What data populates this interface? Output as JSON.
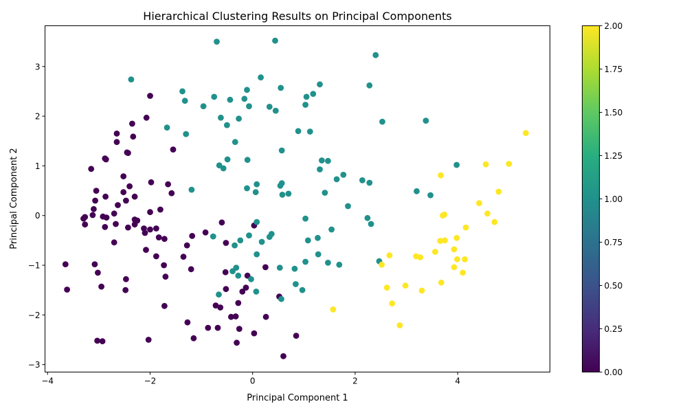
{
  "chart_data": {
    "type": "scatter",
    "title": "Hierarchical Clustering Results on Principal Components",
    "xlabel": "Principal Component 1",
    "ylabel": "Principal Component 2",
    "xlim": [
      -4.05,
      5.8
    ],
    "ylim": [
      -3.15,
      3.82
    ],
    "xticks": [
      -4,
      -2,
      0,
      2,
      4
    ],
    "xtick_labels": [
      "−4",
      "−2",
      "0",
      "2",
      "4"
    ],
    "yticks": [
      -3,
      -2,
      -1,
      0,
      1,
      2,
      3
    ],
    "ytick_labels": [
      "−3",
      "−2",
      "−1",
      "0",
      "1",
      "2",
      "3"
    ],
    "grid": false,
    "colorbar": {
      "colormap": "viridis",
      "range": [
        0,
        2
      ],
      "ticks": [
        0,
        0.25,
        0.5,
        0.75,
        1.0,
        1.25,
        1.5,
        1.75,
        2.0
      ],
      "tick_labels": [
        "0.00",
        "0.25",
        "0.50",
        "0.75",
        "1.00",
        "1.25",
        "1.50",
        "1.75",
        "2.00"
      ]
    },
    "cluster_colors": [
      "#440154",
      "#21918c",
      "#fde725"
    ],
    "series": [
      {
        "cluster": 0,
        "points": [
          [
            -2.35,
            1.85
          ],
          [
            -2.0,
            2.41
          ],
          [
            -2.07,
            1.97
          ],
          [
            -2.33,
            1.59
          ],
          [
            -2.65,
            1.65
          ],
          [
            -2.65,
            1.48
          ],
          [
            -2.43,
            1.26
          ],
          [
            -2.45,
            1.27
          ],
          [
            -2.86,
            1.13
          ],
          [
            -3.15,
            0.94
          ],
          [
            -2.88,
            1.15
          ],
          [
            -1.55,
            1.33
          ],
          [
            -2.52,
            0.79
          ],
          [
            -1.98,
            0.67
          ],
          [
            -3.05,
            0.5
          ],
          [
            -2.4,
            0.59
          ],
          [
            -1.65,
            0.63
          ],
          [
            -2.52,
            0.47
          ],
          [
            -3.07,
            0.3
          ],
          [
            -2.47,
            0.3
          ],
          [
            -2.3,
            0.38
          ],
          [
            -2.87,
            0.38
          ],
          [
            -1.58,
            0.45
          ],
          [
            -2.63,
            0.21
          ],
          [
            -3.1,
            0.13
          ],
          [
            -1.8,
            0.12
          ],
          [
            -2.0,
            0.07
          ],
          [
            -2.7,
            0.04
          ],
          [
            -3.12,
            0.01
          ],
          [
            -2.92,
            -0.02
          ],
          [
            -3.27,
            -0.03
          ],
          [
            -3.3,
            -0.06
          ],
          [
            -2.85,
            -0.04
          ],
          [
            -2.3,
            -0.08
          ],
          [
            -2.25,
            -0.1
          ],
          [
            -0.6,
            -0.14
          ],
          [
            -2.3,
            -0.18
          ],
          [
            -2.67,
            -0.17
          ],
          [
            -3.27,
            -0.18
          ],
          [
            -2.88,
            -0.23
          ],
          [
            -2.43,
            -0.24
          ],
          [
            -2.12,
            -0.26
          ],
          [
            -2.0,
            -0.28
          ],
          [
            -1.88,
            -0.26
          ],
          [
            -2.1,
            -0.35
          ],
          [
            0.03,
            -0.2
          ],
          [
            -0.92,
            -0.34
          ],
          [
            -1.18,
            -0.41
          ],
          [
            -1.83,
            -0.44
          ],
          [
            -1.72,
            -0.47
          ],
          [
            -0.52,
            -0.55
          ],
          [
            -1.28,
            -0.6
          ],
          [
            -2.7,
            -0.54
          ],
          [
            -2.08,
            -0.69
          ],
          [
            -1.88,
            -0.82
          ],
          [
            -1.35,
            -0.83
          ],
          [
            -3.65,
            -0.98
          ],
          [
            -3.08,
            -0.98
          ],
          [
            -1.73,
            -1.0
          ],
          [
            -1.2,
            -1.08
          ],
          [
            -3.02,
            -1.15
          ],
          [
            -0.53,
            -1.14
          ],
          [
            0.25,
            -1.04
          ],
          [
            -1.7,
            -1.23
          ],
          [
            -2.47,
            -1.28
          ],
          [
            -2.95,
            -1.43
          ],
          [
            -3.62,
            -1.49
          ],
          [
            -2.48,
            -1.5
          ],
          [
            -0.52,
            -1.48
          ],
          [
            -0.2,
            -1.53
          ],
          [
            -0.1,
            -1.21
          ],
          [
            -0.13,
            -1.45
          ],
          [
            0.52,
            -1.63
          ],
          [
            -1.72,
            -1.82
          ],
          [
            -0.72,
            -1.81
          ],
          [
            -0.63,
            -1.85
          ],
          [
            -0.28,
            -1.76
          ],
          [
            -0.42,
            -2.04
          ],
          [
            -0.33,
            -2.03
          ],
          [
            0.26,
            -2.04
          ],
          [
            -1.27,
            -2.15
          ],
          [
            -0.87,
            -2.26
          ],
          [
            -0.68,
            -2.26
          ],
          [
            -0.26,
            -2.28
          ],
          [
            0.03,
            -2.37
          ],
          [
            0.85,
            -2.42
          ],
          [
            -1.15,
            -2.47
          ],
          [
            -2.03,
            -2.5
          ],
          [
            -3.03,
            -2.52
          ],
          [
            -2.93,
            -2.53
          ],
          [
            -0.31,
            -2.56
          ],
          [
            0.6,
            -2.83
          ]
        ]
      },
      {
        "cluster": 1,
        "points": [
          [
            -0.7,
            3.5
          ],
          [
            0.44,
            3.52
          ],
          [
            2.4,
            3.23
          ],
          [
            -2.37,
            2.74
          ],
          [
            0.16,
            2.78
          ],
          [
            1.31,
            2.64
          ],
          [
            2.28,
            2.62
          ],
          [
            -1.37,
            2.5
          ],
          [
            -0.11,
            2.53
          ],
          [
            0.55,
            2.57
          ],
          [
            1.18,
            2.45
          ],
          [
            -0.75,
            2.39
          ],
          [
            -1.32,
            2.31
          ],
          [
            -0.44,
            2.33
          ],
          [
            -0.16,
            2.35
          ],
          [
            1.05,
            2.39
          ],
          [
            -0.96,
            2.2
          ],
          [
            -0.07,
            2.2
          ],
          [
            0.33,
            2.19
          ],
          [
            0.45,
            2.11
          ],
          [
            1.03,
            2.23
          ],
          [
            -0.62,
            1.97
          ],
          [
            -0.27,
            1.95
          ],
          [
            2.53,
            1.89
          ],
          [
            3.38,
            1.91
          ],
          [
            -0.5,
            1.82
          ],
          [
            0.89,
            1.7
          ],
          [
            1.12,
            1.69
          ],
          [
            -1.67,
            1.77
          ],
          [
            -1.3,
            1.64
          ],
          [
            -0.34,
            1.48
          ],
          [
            0.57,
            1.31
          ],
          [
            -0.49,
            1.13
          ],
          [
            -0.1,
            1.12
          ],
          [
            1.35,
            1.11
          ],
          [
            1.47,
            1.1
          ],
          [
            3.98,
            1.02
          ],
          [
            -0.65,
            1.01
          ],
          [
            -0.57,
            0.95
          ],
          [
            1.31,
            0.93
          ],
          [
            1.77,
            0.82
          ],
          [
            1.64,
            0.73
          ],
          [
            2.14,
            0.71
          ],
          [
            2.28,
            0.66
          ],
          [
            0.08,
            0.63
          ],
          [
            0.54,
            0.6
          ],
          [
            0.57,
            0.65
          ],
          [
            -1.19,
            0.52
          ],
          [
            -0.11,
            0.55
          ],
          [
            0.06,
            0.47
          ],
          [
            0.58,
            0.42
          ],
          [
            0.7,
            0.44
          ],
          [
            1.41,
            0.46
          ],
          [
            3.2,
            0.49
          ],
          [
            3.47,
            0.41
          ],
          [
            1.86,
            0.19
          ],
          [
            1.03,
            -0.06
          ],
          [
            0.08,
            -0.13
          ],
          [
            2.24,
            -0.05
          ],
          [
            2.31,
            -0.17
          ],
          [
            1.54,
            -0.28
          ],
          [
            0.37,
            -0.37
          ],
          [
            0.33,
            -0.43
          ],
          [
            -0.07,
            -0.4
          ],
          [
            1.08,
            -0.5
          ],
          [
            1.27,
            -0.45
          ],
          [
            -0.24,
            -0.5
          ],
          [
            -0.35,
            -0.6
          ],
          [
            0.18,
            -0.53
          ],
          [
            -0.77,
            -0.42
          ],
          [
            0.08,
            -0.78
          ],
          [
            1.28,
            -0.78
          ],
          [
            1.03,
            -0.93
          ],
          [
            1.47,
            -0.95
          ],
          [
            1.69,
            -0.99
          ],
          [
            2.47,
            -0.92
          ],
          [
            -0.32,
            -1.05
          ],
          [
            0.53,
            -1.05
          ],
          [
            0.82,
            -1.07
          ],
          [
            -0.39,
            -1.12
          ],
          [
            -0.28,
            -1.21
          ],
          [
            -0.03,
            -1.28
          ],
          [
            0.84,
            -1.38
          ],
          [
            0.97,
            -1.5
          ],
          [
            0.07,
            -1.53
          ],
          [
            -0.66,
            -1.59
          ],
          [
            0.56,
            -1.68
          ]
        ]
      },
      {
        "cluster": 2,
        "points": [
          [
            5.33,
            1.66
          ],
          [
            4.55,
            1.03
          ],
          [
            5.0,
            1.04
          ],
          [
            3.67,
            0.81
          ],
          [
            4.8,
            0.48
          ],
          [
            4.42,
            0.25
          ],
          [
            3.74,
            0.02
          ],
          [
            3.71,
            0.0
          ],
          [
            4.58,
            0.04
          ],
          [
            4.72,
            -0.13
          ],
          [
            4.16,
            -0.24
          ],
          [
            3.98,
            -0.45
          ],
          [
            3.66,
            -0.51
          ],
          [
            3.75,
            -0.5
          ],
          [
            3.93,
            -0.68
          ],
          [
            3.56,
            -0.73
          ],
          [
            2.67,
            -0.8
          ],
          [
            3.19,
            -0.82
          ],
          [
            3.27,
            -0.84
          ],
          [
            3.99,
            -0.88
          ],
          [
            4.14,
            -0.88
          ],
          [
            2.52,
            -0.99
          ],
          [
            3.93,
            -1.04
          ],
          [
            4.1,
            -1.15
          ],
          [
            3.68,
            -1.35
          ],
          [
            2.98,
            -1.41
          ],
          [
            2.62,
            -1.45
          ],
          [
            3.3,
            -1.51
          ],
          [
            2.72,
            -1.77
          ],
          [
            1.57,
            -1.89
          ],
          [
            2.87,
            -2.21
          ]
        ]
      }
    ]
  }
}
